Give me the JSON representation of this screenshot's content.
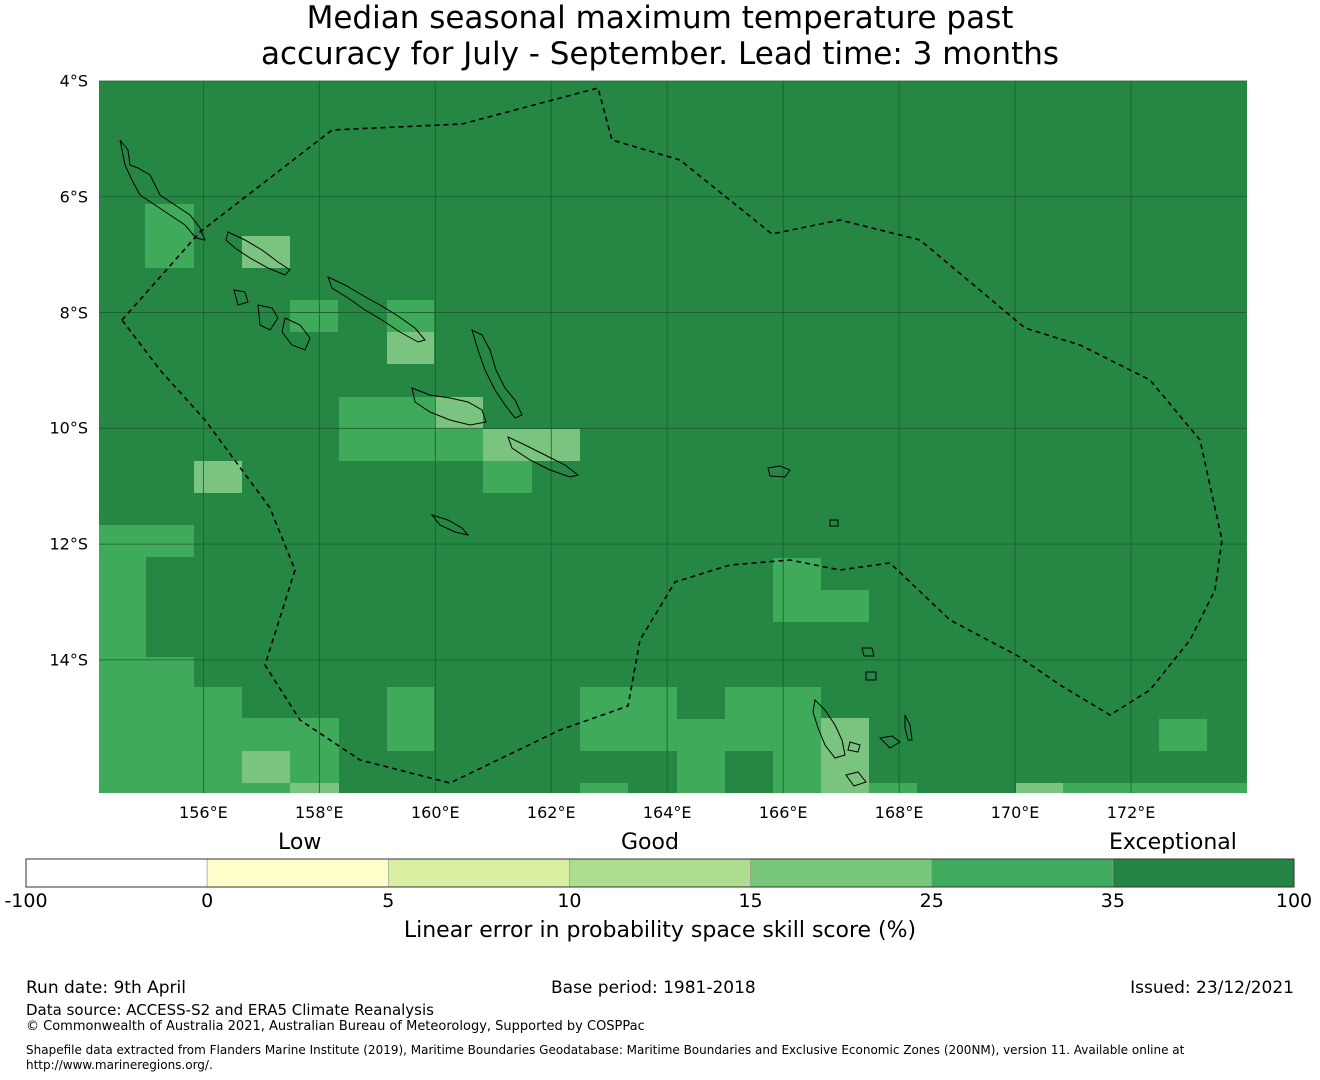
{
  "title": {
    "line1": "Median seasonal maximum temperature past",
    "line2": "accuracy for July - September. Lead time: 3 months"
  },
  "map": {
    "lat_labels": [
      "4°S",
      "6°S",
      "8°S",
      "10°S",
      "12°S",
      "14°S"
    ],
    "lon_labels": [
      "156°E",
      "158°E",
      "160°E",
      "162°E",
      "164°E",
      "166°E",
      "168°E",
      "170°E",
      "172°E"
    ],
    "lon_range": [
      154.2,
      174.0
    ],
    "lat_range": [
      -16.3,
      -4.0
    ],
    "background_color": "#268744",
    "cell_colors": {
      "a": "#40aa5b",
      "b": "#7bc47f",
      "c": "#268744"
    }
  },
  "colorbar": {
    "categories": [
      "Low",
      "Good",
      "Exceptional"
    ],
    "ticks": [
      "-100",
      "0",
      "5",
      "10",
      "15",
      "25",
      "35",
      "100"
    ],
    "colors": [
      "#ffffff",
      "#ffffcc",
      "#d9f0a3",
      "#addd8e",
      "#78c679",
      "#41ab5d",
      "#238443"
    ],
    "title": "Linear error in probability space skill score (%)"
  },
  "footer": {
    "run_date": "Run date: 9th April",
    "base_period": "Base period: 1981-2018",
    "issued": "Issued: 23/12/2021",
    "data_source": "Data source: ACCESS-S2 and ERA5 Climate Reanalysis",
    "copyright": "© Commonwealth of Australia 2021, Australian Bureau of Meteorology, Supported by COSPPac",
    "shapefile": "Shapefile data extracted from Flanders Marine Institute (2019), Maritime Boundaries Geodatabase: Maritime Boundaries and Exclusive Economic Zones (200NM), version 11. Available online at http://www.marineregions.org/."
  }
}
